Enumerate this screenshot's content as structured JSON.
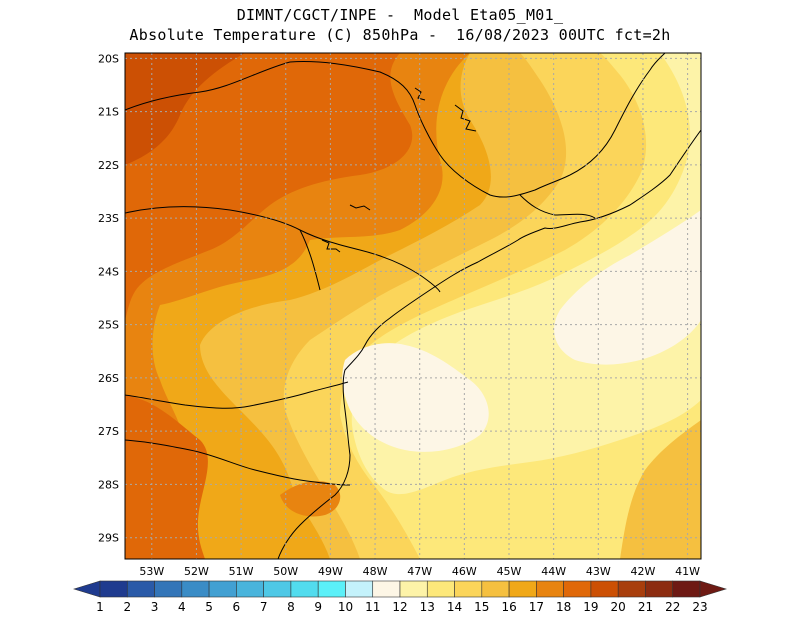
{
  "header": {
    "line1": "DIMNT/CGCT/INPE -  Model Eta05_M01_",
    "line2": "Absolute Temperature (C) 850hPa -  16/08/2023 00UTC fct=2h"
  },
  "map": {
    "lat_labels": [
      "20S",
      "21S",
      "22S",
      "23S",
      "24S",
      "25S",
      "26S",
      "27S",
      "28S",
      "29S"
    ],
    "lon_labels": [
      "53W",
      "52W",
      "51W",
      "50W",
      "49W",
      "48W",
      "47W",
      "46W",
      "45W",
      "44W",
      "43W",
      "42W",
      "41W"
    ],
    "lat_range": [
      -29.4,
      -19.9
    ],
    "lon_range": [
      -53.6,
      -40.7
    ],
    "grid": true
  },
  "colorbar": {
    "labels": [
      "1",
      "2",
      "3",
      "4",
      "5",
      "6",
      "7",
      "8",
      "9",
      "10",
      "11",
      "12",
      "13",
      "14",
      "15",
      "16",
      "17",
      "18",
      "19",
      "20",
      "21",
      "22",
      "23"
    ],
    "colors": [
      "#1f3b8f",
      "#2a5aa8",
      "#3375b8",
      "#3a8cc6",
      "#42a0d2",
      "#49b4dc",
      "#4ec8e6",
      "#52dcee",
      "#5bf0f8",
      "#c4f2fb",
      "#fdf6e6",
      "#fdf3a8",
      "#fde87a",
      "#fbd55a",
      "#f5c040",
      "#f0a818",
      "#e88410",
      "#e06808",
      "#cc5004",
      "#a83e0c",
      "#8c2c10",
      "#6e1a14"
    ]
  },
  "temperature_zones": {
    "colors": {
      "t12": "#fdf6e6",
      "t13": "#fdf3a8",
      "t14": "#fde87a",
      "t15": "#fbd55a",
      "t16": "#f5c040",
      "t17": "#f0a818",
      "t18": "#e88410",
      "t19": "#e06808",
      "t20": "#cc5004"
    }
  }
}
